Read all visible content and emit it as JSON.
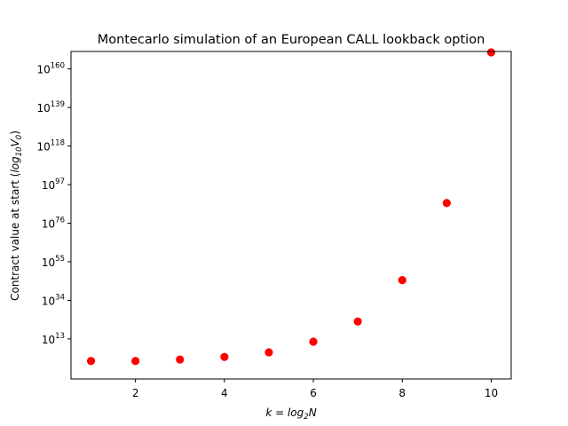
{
  "chart_data": {
    "type": "scatter",
    "title": "Montecarlo simulation of an European CALL lookback option",
    "xlabel": {
      "prefix": "k = log",
      "sub": "2",
      "suffix": "N"
    },
    "ylabel": {
      "prefix": "Contract value at start (",
      "mid": "log",
      "sub": "10",
      "suffix": "V",
      "sub2": "0",
      "end": ")"
    },
    "x_ticks": [
      2,
      4,
      6,
      8,
      10
    ],
    "x_tick_labels": [
      "2",
      "4",
      "6",
      "8",
      "10"
    ],
    "y_ticks": [
      13,
      34,
      55,
      76,
      97,
      118,
      139,
      160
    ],
    "y_tick_base": "10",
    "y_tick_exponents": [
      "13",
      "34",
      "55",
      "76",
      "97",
      "118",
      "139",
      "160"
    ],
    "y_scale": "log",
    "xlim": [
      0.55,
      10.45
    ],
    "ylim_exponent": [
      -8.8,
      169.5
    ],
    "grid": false,
    "point_color": "#ff0000",
    "points": [
      {
        "x": 1,
        "log10_y": 1.0
      },
      {
        "x": 2,
        "log10_y": 1.0
      },
      {
        "x": 3,
        "log10_y": 1.8
      },
      {
        "x": 4,
        "log10_y": 3.2
      },
      {
        "x": 5,
        "log10_y": 5.7
      },
      {
        "x": 6,
        "log10_y": 11.5
      },
      {
        "x": 7,
        "log10_y": 22.5
      },
      {
        "x": 8,
        "log10_y": 45.0
      },
      {
        "x": 9,
        "log10_y": 87.0
      },
      {
        "x": 10,
        "log10_y": 169.0
      }
    ]
  }
}
